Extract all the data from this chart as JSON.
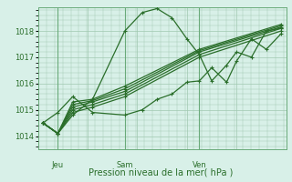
{
  "background_color": "#d8f0e8",
  "grid_color": "#a0c8b0",
  "line_color": "#2a6e2a",
  "marker_color": "#2a6e2a",
  "xlabel": "Pression niveau de la mer( hPa )",
  "ylim": [
    1013.5,
    1018.9
  ],
  "yticks": [
    1014,
    1015,
    1016,
    1017,
    1018
  ],
  "day_labels": [
    "Jeu",
    "Sam",
    "Ven"
  ],
  "day_positions": [
    0.08,
    0.35,
    0.65
  ],
  "series": [
    {
      "x": [
        0.02,
        0.08,
        0.14,
        0.22,
        0.35,
        0.42,
        0.48,
        0.54,
        0.6,
        0.65,
        0.7,
        0.76,
        0.8,
        0.86,
        0.92,
        0.98
      ],
      "y": [
        1014.5,
        1014.1,
        1014.8,
        1015.4,
        1018.0,
        1018.7,
        1018.85,
        1018.5,
        1017.7,
        1017.1,
        1016.1,
        1016.7,
        1017.2,
        1017.0,
        1018.0,
        1018.1
      ]
    },
    {
      "x": [
        0.02,
        0.08,
        0.14,
        0.22,
        0.35,
        0.65,
        0.98
      ],
      "y": [
        1014.5,
        1014.1,
        1014.9,
        1015.1,
        1015.5,
        1017.0,
        1018.0
      ]
    },
    {
      "x": [
        0.02,
        0.08,
        0.14,
        0.22,
        0.35,
        0.65,
        0.98
      ],
      "y": [
        1014.5,
        1014.1,
        1015.0,
        1015.2,
        1015.6,
        1017.1,
        1018.1
      ]
    },
    {
      "x": [
        0.02,
        0.08,
        0.14,
        0.22,
        0.35,
        0.65,
        0.98
      ],
      "y": [
        1014.5,
        1014.1,
        1015.1,
        1015.3,
        1015.7,
        1017.2,
        1018.15
      ]
    },
    {
      "x": [
        0.02,
        0.08,
        0.14,
        0.22,
        0.35,
        0.65,
        0.98
      ],
      "y": [
        1014.5,
        1014.1,
        1015.2,
        1015.35,
        1015.8,
        1017.25,
        1018.2
      ]
    },
    {
      "x": [
        0.02,
        0.08,
        0.14,
        0.22,
        0.35,
        0.65,
        0.98
      ],
      "y": [
        1014.5,
        1014.1,
        1015.3,
        1015.4,
        1015.9,
        1017.3,
        1018.25
      ]
    },
    {
      "x": [
        0.02,
        0.08,
        0.14,
        0.22,
        0.35,
        0.42,
        0.48,
        0.54,
        0.6,
        0.65,
        0.7,
        0.76,
        0.8,
        0.86,
        0.92,
        0.98
      ],
      "y": [
        1014.5,
        1014.9,
        1015.5,
        1014.9,
        1014.8,
        1015.0,
        1015.4,
        1015.6,
        1016.05,
        1016.1,
        1016.6,
        1016.05,
        1016.85,
        1017.7,
        1017.3,
        1017.9
      ]
    }
  ]
}
